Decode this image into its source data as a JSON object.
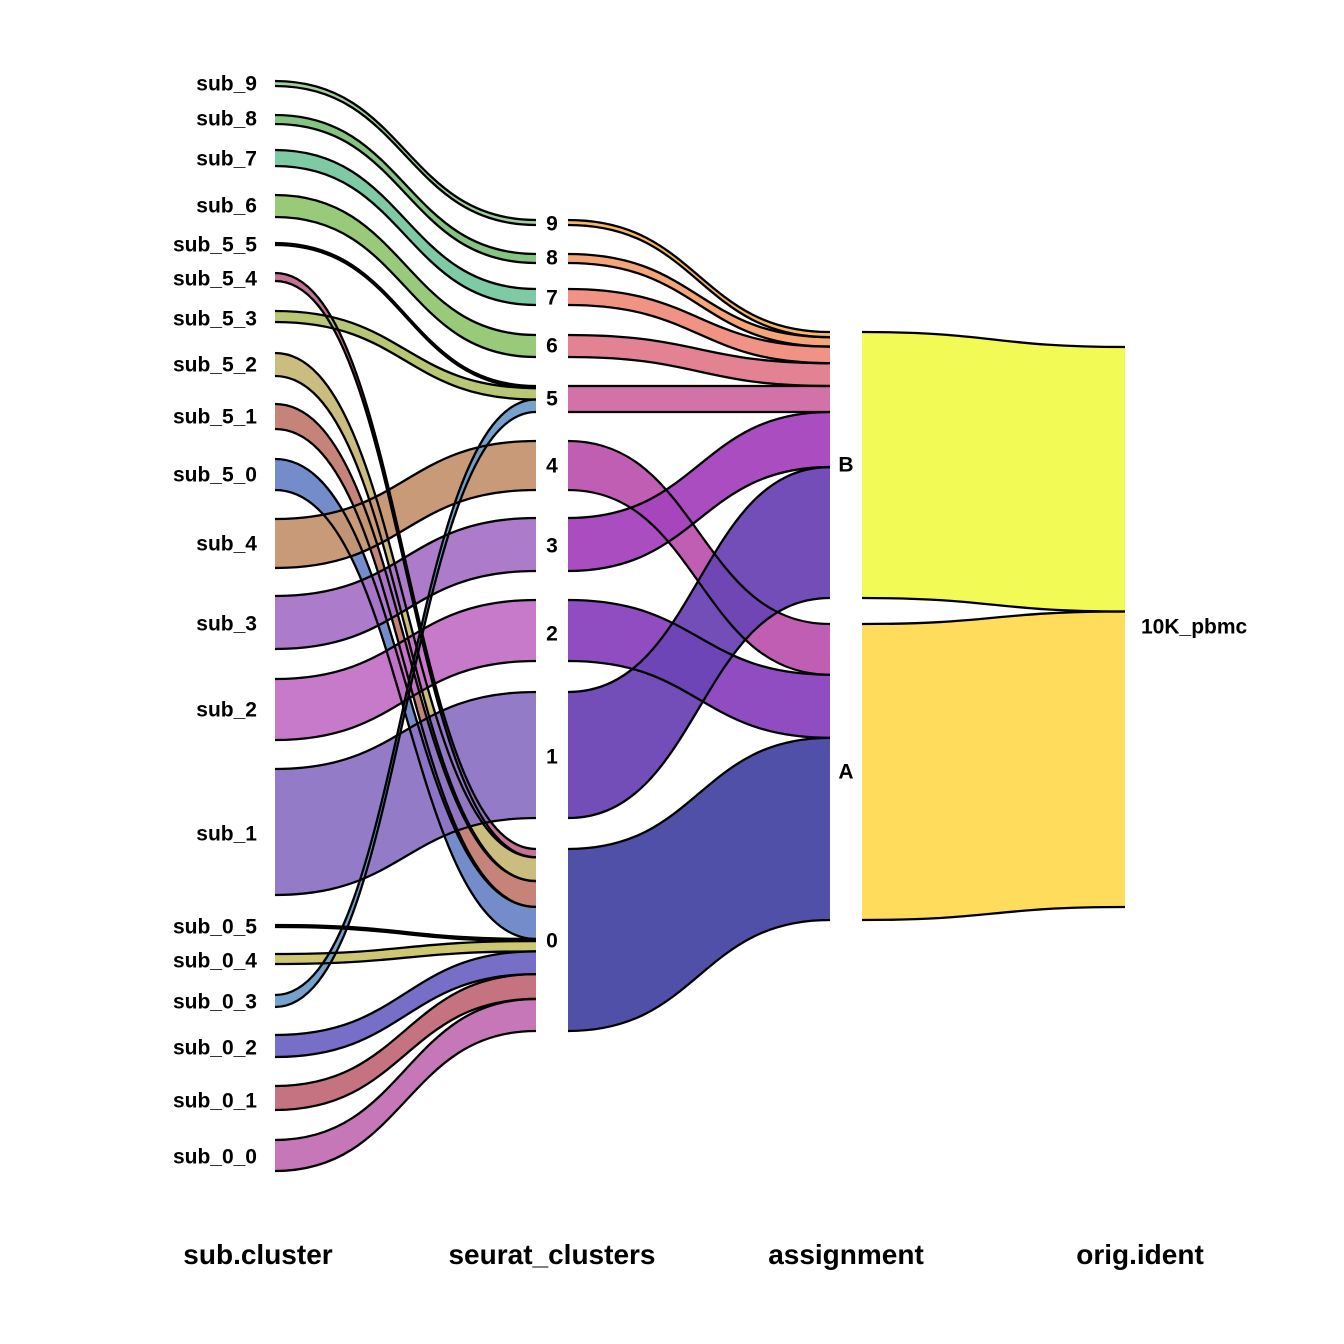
{
  "chart_data": {
    "type": "alluvial",
    "title": "",
    "axes": [
      {
        "key": "sub",
        "label": "sub.cluster"
      },
      {
        "key": "seurat",
        "label": "seurat_clusters"
      },
      {
        "key": "assign",
        "label": "assignment"
      },
      {
        "key": "orig",
        "label": "orig.ident"
      }
    ],
    "nodes": {
      "sub": [
        "sub_0_0",
        "sub_0_1",
        "sub_0_2",
        "sub_0_3",
        "sub_0_4",
        "sub_0_5",
        "sub_1",
        "sub_2",
        "sub_3",
        "sub_4",
        "sub_5_0",
        "sub_5_1",
        "sub_5_2",
        "sub_5_3",
        "sub_5_4",
        "sub_5_5",
        "sub_6",
        "sub_7",
        "sub_8",
        "sub_9"
      ],
      "seurat": [
        "0",
        "1",
        "2",
        "3",
        "4",
        "5",
        "6",
        "7",
        "8",
        "9"
      ],
      "assign": [
        "A",
        "B"
      ],
      "orig": [
        "10K_pbmc"
      ]
    },
    "flows_sub_to_seurat": [
      {
        "from": "sub_0_0",
        "to": "0",
        "value": 31
      },
      {
        "from": "sub_0_1",
        "to": "0",
        "value": 24
      },
      {
        "from": "sub_0_2",
        "to": "0",
        "value": 22
      },
      {
        "from": "sub_0_3",
        "to": "5",
        "value": 12
      },
      {
        "from": "sub_0_4",
        "to": "0",
        "value": 10
      },
      {
        "from": "sub_0_5",
        "to": "0",
        "value": 2
      },
      {
        "from": "sub_1",
        "to": "1",
        "value": 126
      },
      {
        "from": "sub_2",
        "to": "2",
        "value": 61
      },
      {
        "from": "sub_3",
        "to": "3",
        "value": 53
      },
      {
        "from": "sub_4",
        "to": "4",
        "value": 49
      },
      {
        "from": "sub_5_0",
        "to": "0",
        "value": 31
      },
      {
        "from": "sub_5_1",
        "to": "0",
        "value": 25
      },
      {
        "from": "sub_5_2",
        "to": "0",
        "value": 23
      },
      {
        "from": "sub_5_3",
        "to": "5",
        "value": 11
      },
      {
        "from": "sub_5_4",
        "to": "0",
        "value": 8
      },
      {
        "from": "sub_5_5",
        "to": "5",
        "value": 2
      },
      {
        "from": "sub_6",
        "to": "6",
        "value": 22
      },
      {
        "from": "sub_7",
        "to": "7",
        "value": 16
      },
      {
        "from": "sub_8",
        "to": "8",
        "value": 9
      },
      {
        "from": "sub_9",
        "to": "9",
        "value": 5
      }
    ],
    "flows_seurat_to_assign": [
      {
        "from": "0",
        "to": "A",
        "value": 176
      },
      {
        "from": "1",
        "to": "B",
        "value": 126
      },
      {
        "from": "2",
        "to": "A",
        "value": 61
      },
      {
        "from": "3",
        "to": "B",
        "value": 53
      },
      {
        "from": "4",
        "to": "A",
        "value": 49
      },
      {
        "from": "5",
        "to": "B",
        "value": 25
      },
      {
        "from": "6",
        "to": "B",
        "value": 22
      },
      {
        "from": "7",
        "to": "B",
        "value": 16
      },
      {
        "from": "8",
        "to": "B",
        "value": 9
      },
      {
        "from": "9",
        "to": "B",
        "value": 5
      }
    ],
    "flows_assign_to_orig": [
      {
        "from": "A",
        "to": "10K_pbmc",
        "value": 286
      },
      {
        "from": "B",
        "to": "10K_pbmc",
        "value": 256
      }
    ],
    "colors": {
      "sub_0_0": "#c370b4",
      "sub_0_1": "#c26a7a",
      "sub_0_2": "#6f66c4",
      "sub_0_3": "#6d9dc9",
      "sub_0_4": "#c9c468",
      "sub_0_5": "#d8d8d8",
      "sub_1": "#8d74c5",
      "sub_2": "#c473c6",
      "sub_3": "#a874c6",
      "sub_4": "#c59570",
      "sub_5_0": "#6d87c7",
      "sub_5_1": "#c37c72",
      "sub_5_2": "#c8b878",
      "sub_5_3": "#b3c46d",
      "sub_5_4": "#c26c8f",
      "sub_5_5": "#e0e0e0",
      "sub_6": "#92c773",
      "sub_7": "#76c79f",
      "sub_8": "#7dc37a",
      "sub_9": "#9ccf9a",
      "s0": "#4747a3",
      "s1": "#6c45b5",
      "s2": "#8a43be",
      "s3": "#a443bd",
      "s4": "#bd55b0",
      "s5": "#d16aa3",
      "s6": "#e07b8d",
      "s7": "#ef8d7d",
      "s8": "#f4a070",
      "s9": "#f8b25f",
      "A": "#4747a3",
      "B": "#d16aa3",
      "orig_A": "#ffdc5c",
      "orig_B": "#f2fa55"
    }
  }
}
